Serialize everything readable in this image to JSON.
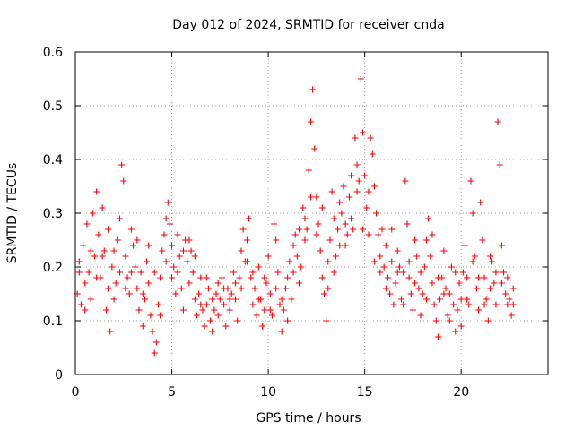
{
  "chart_data": {
    "type": "scatter",
    "title": "Day 012 of 2024, SRMTID for receiver cnda",
    "xlabel": "GPS time / hours",
    "ylabel": "SRMTID / TECUs",
    "xlim": [
      0,
      24.5
    ],
    "ylim": [
      0,
      0.6
    ],
    "xticks": [
      0,
      5,
      10,
      15,
      20
    ],
    "xtick_labels": [
      "0",
      "5",
      "10",
      "15",
      "20"
    ],
    "yticks": [
      0,
      0.1,
      0.2,
      0.3,
      0.4,
      0.5,
      0.6
    ],
    "ytick_labels": [
      "0",
      "0.1",
      "0.2",
      "0.3",
      "0.4",
      "0.5",
      "0.6"
    ],
    "grid": true,
    "marker": "+",
    "series": [
      {
        "name": "SRMTID",
        "color": "#ff0000",
        "points": [
          [
            0.1,
            0.15
          ],
          [
            0.2,
            0.21
          ],
          [
            0.3,
            0.13
          ],
          [
            0.4,
            0.24
          ],
          [
            0.5,
            0.17
          ],
          [
            0.6,
            0.28
          ],
          [
            0.7,
            0.19
          ],
          [
            0.8,
            0.14
          ],
          [
            0.9,
            0.3
          ],
          [
            1.0,
            0.22
          ],
          [
            1.1,
            0.34
          ],
          [
            1.2,
            0.26
          ],
          [
            1.3,
            0.18
          ],
          [
            1.4,
            0.31
          ],
          [
            1.5,
            0.23
          ],
          [
            1.6,
            0.12
          ],
          [
            1.7,
            0.16
          ],
          [
            1.8,
            0.08
          ],
          [
            1.9,
            0.2
          ],
          [
            2.0,
            0.14
          ],
          [
            2.1,
            0.17
          ],
          [
            2.2,
            0.25
          ],
          [
            2.3,
            0.29
          ],
          [
            2.4,
            0.39
          ],
          [
            2.5,
            0.36
          ],
          [
            2.6,
            0.22
          ],
          [
            2.7,
            0.18
          ],
          [
            2.8,
            0.15
          ],
          [
            2.9,
            0.27
          ],
          [
            3.0,
            0.24
          ],
          [
            3.1,
            0.2
          ],
          [
            3.2,
            0.16
          ],
          [
            3.3,
            0.12
          ],
          [
            3.4,
            0.19
          ],
          [
            3.5,
            0.09
          ],
          [
            3.6,
            0.14
          ],
          [
            3.7,
            0.21
          ],
          [
            3.8,
            0.17
          ],
          [
            3.9,
            0.11
          ],
          [
            4.0,
            0.08
          ],
          [
            4.1,
            0.04
          ],
          [
            4.2,
            0.06
          ],
          [
            4.3,
            0.13
          ],
          [
            4.4,
            0.18
          ],
          [
            4.5,
            0.23
          ],
          [
            4.6,
            0.26
          ],
          [
            4.7,
            0.29
          ],
          [
            4.8,
            0.32
          ],
          [
            4.9,
            0.28
          ],
          [
            5.0,
            0.24
          ],
          [
            5.1,
            0.2
          ],
          [
            5.2,
            0.15
          ],
          [
            5.3,
            0.19
          ],
          [
            5.4,
            0.22
          ],
          [
            5.5,
            0.16
          ],
          [
            5.6,
            0.12
          ],
          [
            5.7,
            0.25
          ],
          [
            5.8,
            0.21
          ],
          [
            5.9,
            0.17
          ],
          [
            6.0,
            0.23
          ],
          [
            6.1,
            0.19
          ],
          [
            6.2,
            0.14
          ],
          [
            6.3,
            0.11
          ],
          [
            6.4,
            0.15
          ],
          [
            6.5,
            0.18
          ],
          [
            6.6,
            0.12
          ],
          [
            6.7,
            0.09
          ],
          [
            6.8,
            0.13
          ],
          [
            6.9,
            0.16
          ],
          [
            7.0,
            0.1
          ],
          [
            7.1,
            0.08
          ],
          [
            7.2,
            0.12
          ],
          [
            7.3,
            0.15
          ],
          [
            7.4,
            0.11
          ],
          [
            7.5,
            0.14
          ],
          [
            7.6,
            0.18
          ],
          [
            7.7,
            0.13
          ],
          [
            7.8,
            0.09
          ],
          [
            7.9,
            0.16
          ],
          [
            8.0,
            0.12
          ],
          [
            8.1,
            0.15
          ],
          [
            8.2,
            0.19
          ],
          [
            8.3,
            0.14
          ],
          [
            8.4,
            0.1
          ],
          [
            8.5,
            0.18
          ],
          [
            8.6,
            0.23
          ],
          [
            8.7,
            0.27
          ],
          [
            8.8,
            0.21
          ],
          [
            8.9,
            0.25
          ],
          [
            9.0,
            0.29
          ],
          [
            9.1,
            0.18
          ],
          [
            9.2,
            0.13
          ],
          [
            9.3,
            0.16
          ],
          [
            9.4,
            0.11
          ],
          [
            9.5,
            0.2
          ],
          [
            9.6,
            0.14
          ],
          [
            9.7,
            0.09
          ],
          [
            9.8,
            0.12
          ],
          [
            9.9,
            0.17
          ],
          [
            10.0,
            0.22
          ],
          [
            10.1,
            0.15
          ],
          [
            10.2,
            0.11
          ],
          [
            10.3,
            0.28
          ],
          [
            10.4,
            0.25
          ],
          [
            10.5,
            0.19
          ],
          [
            10.6,
            0.13
          ],
          [
            10.7,
            0.08
          ],
          [
            10.8,
            0.12
          ],
          [
            10.9,
            0.16
          ],
          [
            11.0,
            0.1
          ],
          [
            11.1,
            0.21
          ],
          [
            11.2,
            0.14
          ],
          [
            11.3,
            0.19
          ],
          [
            11.4,
            0.26
          ],
          [
            11.5,
            0.22
          ],
          [
            11.6,
            0.17
          ],
          [
            11.7,
            0.2
          ],
          [
            11.8,
            0.31
          ],
          [
            11.9,
            0.25
          ],
          [
            12.0,
            0.27
          ],
          [
            12.1,
            0.38
          ],
          [
            12.2,
            0.47
          ],
          [
            12.3,
            0.53
          ],
          [
            12.4,
            0.42
          ],
          [
            12.5,
            0.33
          ],
          [
            12.6,
            0.28
          ],
          [
            12.7,
            0.23
          ],
          [
            12.8,
            0.18
          ],
          [
            12.9,
            0.15
          ],
          [
            13.0,
            0.1
          ],
          [
            13.1,
            0.21
          ],
          [
            13.2,
            0.25
          ],
          [
            13.3,
            0.34
          ],
          [
            13.4,
            0.29
          ],
          [
            13.5,
            0.22
          ],
          [
            13.6,
            0.27
          ],
          [
            13.7,
            0.24
          ],
          [
            13.8,
            0.3
          ],
          [
            13.9,
            0.35
          ],
          [
            14.0,
            0.28
          ],
          [
            14.1,
            0.26
          ],
          [
            14.2,
            0.33
          ],
          [
            14.3,
            0.37
          ],
          [
            14.4,
            0.27
          ],
          [
            14.5,
            0.44
          ],
          [
            14.6,
            0.34
          ],
          [
            14.7,
            0.36
          ],
          [
            14.8,
            0.55
          ],
          [
            14.9,
            0.45
          ],
          [
            15.0,
            0.37
          ],
          [
            15.1,
            0.31
          ],
          [
            15.2,
            0.26
          ],
          [
            15.3,
            0.44
          ],
          [
            15.4,
            0.41
          ],
          [
            15.5,
            0.35
          ],
          [
            15.6,
            0.3
          ],
          [
            15.7,
            0.26
          ],
          [
            15.8,
            0.22
          ],
          [
            15.9,
            0.27
          ],
          [
            16.0,
            0.2
          ],
          [
            16.1,
            0.24
          ],
          [
            16.2,
            0.18
          ],
          [
            16.3,
            0.15
          ],
          [
            16.4,
            0.21
          ],
          [
            16.5,
            0.13
          ],
          [
            16.6,
            0.17
          ],
          [
            16.7,
            0.23
          ],
          [
            16.8,
            0.2
          ],
          [
            16.9,
            0.14
          ],
          [
            17.0,
            0.19
          ],
          [
            17.1,
            0.36
          ],
          [
            17.2,
            0.28
          ],
          [
            17.3,
            0.21
          ],
          [
            17.4,
            0.15
          ],
          [
            17.5,
            0.12
          ],
          [
            17.6,
            0.17
          ],
          [
            17.7,
            0.22
          ],
          [
            17.8,
            0.16
          ],
          [
            17.9,
            0.11
          ],
          [
            18.0,
            0.15
          ],
          [
            18.1,
            0.2
          ],
          [
            18.2,
            0.25
          ],
          [
            18.3,
            0.29
          ],
          [
            18.4,
            0.22
          ],
          [
            18.5,
            0.17
          ],
          [
            18.6,
            0.13
          ],
          [
            18.7,
            0.1
          ],
          [
            18.8,
            0.07
          ],
          [
            18.9,
            0.14
          ],
          [
            19.0,
            0.18
          ],
          [
            19.1,
            0.23
          ],
          [
            19.2,
            0.16
          ],
          [
            19.3,
            0.11
          ],
          [
            19.4,
            0.15
          ],
          [
            19.5,
            0.2
          ],
          [
            19.6,
            0.13
          ],
          [
            19.7,
            0.08
          ],
          [
            19.8,
            0.12
          ],
          [
            19.9,
            0.17
          ],
          [
            20.0,
            0.14
          ],
          [
            20.1,
            0.19
          ],
          [
            20.2,
            0.24
          ],
          [
            20.3,
            0.18
          ],
          [
            20.4,
            0.13
          ],
          [
            20.5,
            0.36
          ],
          [
            20.6,
            0.3
          ],
          [
            20.7,
            0.22
          ],
          [
            20.8,
            0.16
          ],
          [
            20.9,
            0.12
          ],
          [
            21.0,
            0.32
          ],
          [
            21.1,
            0.25
          ],
          [
            21.2,
            0.18
          ],
          [
            21.3,
            0.14
          ],
          [
            21.4,
            0.1
          ],
          [
            21.5,
            0.16
          ],
          [
            21.6,
            0.21
          ],
          [
            21.7,
            0.17
          ],
          [
            21.8,
            0.13
          ],
          [
            21.9,
            0.47
          ],
          [
            22.0,
            0.39
          ],
          [
            22.1,
            0.24
          ],
          [
            22.2,
            0.19
          ],
          [
            22.3,
            0.15
          ],
          [
            22.4,
            0.18
          ],
          [
            22.5,
            0.14
          ],
          [
            22.6,
            0.11
          ],
          [
            22.7,
            0.13
          ],
          [
            0.2,
            0.19
          ],
          [
            0.5,
            0.12
          ],
          [
            0.8,
            0.23
          ],
          [
            1.1,
            0.18
          ],
          [
            1.4,
            0.22
          ],
          [
            1.7,
            0.27
          ],
          [
            2.0,
            0.23
          ],
          [
            2.3,
            0.19
          ],
          [
            2.6,
            0.16
          ],
          [
            2.9,
            0.19
          ],
          [
            3.2,
            0.25
          ],
          [
            3.5,
            0.15
          ],
          [
            3.8,
            0.24
          ],
          [
            4.1,
            0.19
          ],
          [
            4.4,
            0.11
          ],
          [
            4.7,
            0.21
          ],
          [
            5.0,
            0.18
          ],
          [
            5.3,
            0.26
          ],
          [
            5.6,
            0.23
          ],
          [
            5.9,
            0.25
          ],
          [
            6.2,
            0.22
          ],
          [
            6.5,
            0.13
          ],
          [
            6.8,
            0.18
          ],
          [
            7.1,
            0.14
          ],
          [
            7.4,
            0.17
          ],
          [
            7.7,
            0.16
          ],
          [
            8.0,
            0.14
          ],
          [
            8.3,
            0.17
          ],
          [
            8.6,
            0.16
          ],
          [
            8.9,
            0.21
          ],
          [
            9.2,
            0.19
          ],
          [
            9.5,
            0.14
          ],
          [
            9.8,
            0.18
          ],
          [
            10.1,
            0.12
          ],
          [
            10.4,
            0.16
          ],
          [
            10.7,
            0.14
          ],
          [
            11.0,
            0.18
          ],
          [
            11.3,
            0.24
          ],
          [
            11.6,
            0.27
          ],
          [
            11.9,
            0.29
          ],
          [
            12.2,
            0.33
          ],
          [
            12.5,
            0.26
          ],
          [
            12.8,
            0.31
          ],
          [
            13.1,
            0.16
          ],
          [
            13.4,
            0.19
          ],
          [
            13.7,
            0.32
          ],
          [
            14.0,
            0.24
          ],
          [
            14.3,
            0.29
          ],
          [
            14.6,
            0.39
          ],
          [
            14.9,
            0.27
          ],
          [
            15.2,
            0.34
          ],
          [
            15.5,
            0.21
          ],
          [
            15.8,
            0.19
          ],
          [
            16.1,
            0.16
          ],
          [
            16.4,
            0.27
          ],
          [
            16.7,
            0.19
          ],
          [
            17.0,
            0.13
          ],
          [
            17.3,
            0.18
          ],
          [
            17.6,
            0.25
          ],
          [
            17.9,
            0.19
          ],
          [
            18.2,
            0.14
          ],
          [
            18.5,
            0.26
          ],
          [
            18.8,
            0.18
          ],
          [
            19.1,
            0.15
          ],
          [
            19.4,
            0.1
          ],
          [
            19.7,
            0.19
          ],
          [
            20.0,
            0.09
          ],
          [
            20.3,
            0.14
          ],
          [
            20.6,
            0.21
          ],
          [
            20.9,
            0.18
          ],
          [
            21.2,
            0.13
          ],
          [
            21.5,
            0.22
          ],
          [
            21.8,
            0.19
          ],
          [
            22.1,
            0.17
          ],
          [
            22.4,
            0.13
          ],
          [
            22.7,
            0.16
          ]
        ]
      }
    ]
  }
}
